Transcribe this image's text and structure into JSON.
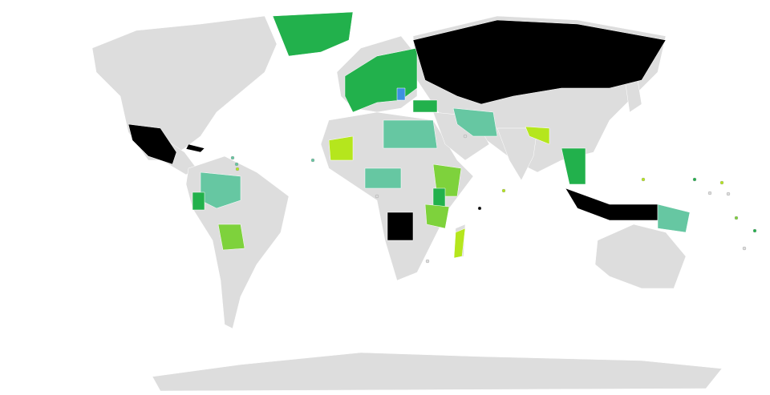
{
  "map": {
    "colors": {
      "background": "#ffffff",
      "land_default": "#dddddd",
      "dark_green": "#22b14c",
      "teal": "#66c7a2",
      "light_green": "#7ed23c",
      "yellow_green": "#b5e61d",
      "black": "#000000",
      "blue": "#3d8fe0",
      "border": "#ffffff"
    }
  }
}
